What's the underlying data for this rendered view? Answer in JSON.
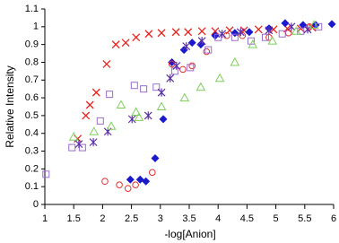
{
  "chart_data": {
    "type": "scatter",
    "x_label": "-log[Anion]",
    "y_label": "Relative Intensity",
    "xlim": [
      1,
      6
    ],
    "xticks": [
      1,
      1.5,
      2,
      2.5,
      3,
      3.5,
      4,
      4.5,
      5,
      5.5,
      6
    ],
    "ylim": [
      0,
      1.1
    ],
    "yticks": [
      0,
      0.1,
      0.2,
      0.3,
      0.4,
      0.5,
      0.6,
      0.7,
      0.8,
      0.9,
      1,
      1.1
    ],
    "grid": false,
    "series": [
      {
        "color": "#e8231e",
        "marker": "x",
        "x": [
          1.57,
          1.71,
          1.78,
          1.89,
          2.07,
          2.23,
          2.4,
          2.58,
          2.8,
          3.02,
          3.27,
          3.48,
          3.72,
          3.95,
          4.2,
          4.45,
          4.7,
          4.96,
          5.2,
          5.43,
          5.63
        ],
        "values": [
          0.37,
          0.5,
          0.56,
          0.63,
          0.79,
          0.9,
          0.91,
          0.94,
          0.96,
          0.965,
          0.97,
          0.97,
          0.975,
          0.975,
          0.98,
          0.98,
          0.985,
          0.985,
          0.99,
          0.99,
          0.995
        ]
      },
      {
        "color": "#1a1acc",
        "marker": "diamond",
        "x": [
          2.48,
          2.65,
          2.75,
          2.91,
          3.05,
          3.2,
          3.41,
          3.55,
          3.7,
          3.95,
          4.29,
          4.54,
          4.88,
          5.16,
          5.47,
          5.69,
          5.97
        ],
        "values": [
          0.14,
          0.14,
          0.13,
          0.26,
          0.48,
          0.8,
          0.87,
          0.91,
          0.9,
          0.95,
          0.965,
          0.97,
          0.99,
          1.02,
          1.01,
          1.01,
          1.015
        ]
      },
      {
        "color": "#e03030",
        "marker": "circle",
        "x": [
          2.04,
          2.29,
          2.44,
          2.57,
          2.86,
          3.2,
          3.39,
          3.55,
          3.8,
          4.15,
          4.42,
          4.88,
          5.22,
          5.58
        ],
        "values": [
          0.13,
          0.11,
          0.09,
          0.11,
          0.18,
          0.79,
          0.76,
          0.78,
          0.86,
          0.95,
          0.95,
          0.94,
          0.965,
          1
        ]
      },
      {
        "color": "#9a6bd0",
        "marker": "square",
        "x": [
          1.02,
          1.47,
          1.65,
          1.96,
          2.12,
          2.55,
          2.71,
          2.93,
          3.25,
          3.52,
          3.83,
          4,
          4.29,
          4.57,
          4.82,
          5.11,
          5.43,
          5.74
        ],
        "values": [
          0.17,
          0.32,
          0.32,
          0.47,
          0.62,
          0.67,
          0.65,
          0.66,
          0.75,
          0.77,
          0.87,
          0.94,
          0.94,
          0.92,
          0.94,
          0.96,
          0.975,
          1
        ]
      },
      {
        "color": "#5a2ea8",
        "marker": "star",
        "x": [
          1.59,
          1.84,
          2.09,
          2.51,
          2.79,
          3.02,
          3.17,
          3.28,
          3.45,
          3.72,
          4.07,
          4.39,
          4.88,
          5.27,
          5.55
        ],
        "values": [
          0.34,
          0.35,
          0.41,
          0.48,
          0.5,
          0.63,
          0.71,
          0.78,
          0.89,
          0.92,
          0.96,
          0.97,
          0.98,
          1,
          0.985
        ]
      },
      {
        "color": "#7fcf5c",
        "marker": "triangle",
        "x": [
          1.5,
          1.85,
          2.15,
          2.32,
          2.58,
          2.63,
          3.02,
          3.42,
          3.7,
          4.03,
          4.29,
          4.6,
          4.94,
          5.35,
          5.66
        ],
        "values": [
          0.38,
          0.41,
          0.44,
          0.56,
          0.52,
          0.49,
          0.55,
          0.6,
          0.66,
          0.71,
          0.8,
          0.9,
          0.92,
          0.975,
          1.01
        ]
      }
    ]
  }
}
